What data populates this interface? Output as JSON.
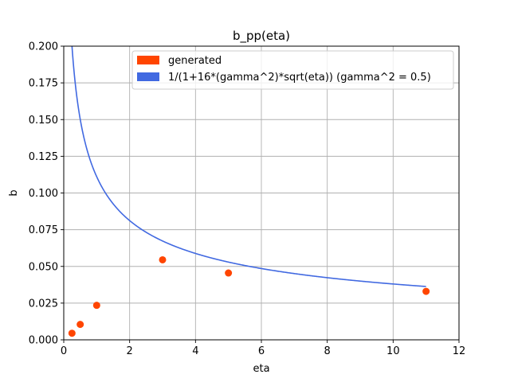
{
  "chart_data": {
    "type": "scatter",
    "title": "b_pp(eta)",
    "xlabel": "eta",
    "ylabel": "b",
    "xlim": [
      0,
      12
    ],
    "ylim": [
      0,
      0.2
    ],
    "xticks": [
      0,
      2,
      4,
      6,
      8,
      10,
      12
    ],
    "xtick_labels": [
      "0",
      "2",
      "4",
      "6",
      "8",
      "10",
      "12"
    ],
    "yticks": [
      0.0,
      0.025,
      0.05,
      0.075,
      0.1,
      0.125,
      0.15,
      0.175,
      0.2
    ],
    "ytick_labels": [
      "0.000",
      "0.025",
      "0.050",
      "0.075",
      "0.100",
      "0.125",
      "0.150",
      "0.175",
      "0.200"
    ],
    "grid": true,
    "legend_position": "top-right",
    "series": [
      {
        "name": "generated",
        "kind": "scatter",
        "color": "#ff4500",
        "x": [
          0.25,
          0.5,
          1.0,
          3.0,
          5.0,
          11.0
        ],
        "y": [
          0.0045,
          0.0105,
          0.0235,
          0.0545,
          0.0455,
          0.033
        ]
      },
      {
        "name": "1/(1+16*(gamma^2)*sqrt(eta)) (gamma^2 = 0.5)",
        "kind": "line",
        "color": "#4169e1",
        "formula_gamma2": 0.5,
        "x_range": [
          0.25,
          11.0
        ]
      }
    ]
  }
}
